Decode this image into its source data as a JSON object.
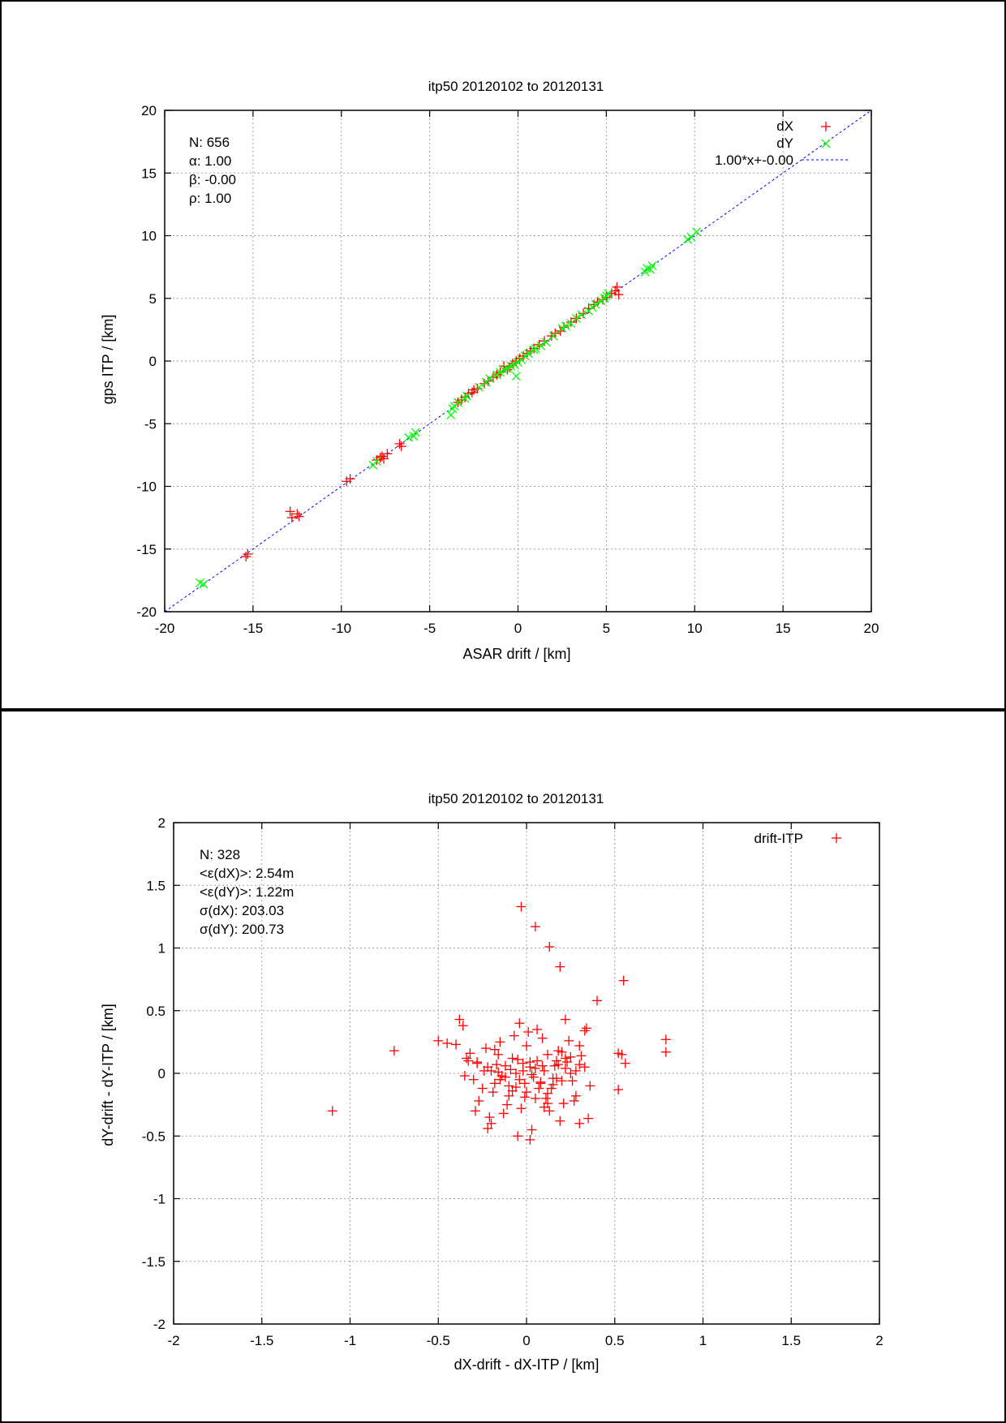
{
  "chart_data": [
    {
      "type": "scatter",
      "title": "itp50 20120102 to 20120131",
      "xlabel": "ASAR drift / [km]",
      "ylabel": "gps ITP / [km]",
      "xlim": [
        -20,
        20
      ],
      "ylim": [
        -20,
        20
      ],
      "xticks": [
        -20,
        -15,
        -10,
        -5,
        0,
        5,
        10,
        15,
        20
      ],
      "yticks": [
        -20,
        -15,
        -10,
        -5,
        0,
        5,
        10,
        15,
        20
      ],
      "grid": true,
      "legend_position": "top-right",
      "stats": [
        "N: 656",
        "α: 1.00",
        "β: -0.00",
        "ρ: 1.00"
      ],
      "series": [
        {
          "name": "dX",
          "marker": "plus",
          "color": "#ff0000",
          "x": [
            -15.4,
            -15.3,
            -12.9,
            -12.8,
            -12.5,
            -12.4,
            -9.7,
            -9.5,
            -8.0,
            -7.8,
            -7.7,
            -7.6,
            -7.4,
            -6.7,
            -6.6,
            -3.4,
            -3.2,
            -3.0,
            -2.8,
            -2.6,
            -2.5,
            -2.3,
            -1.9,
            -1.7,
            -1.4,
            -1.2,
            -1.0,
            -0.8,
            -0.6,
            -0.5,
            -0.3,
            -0.1,
            0.1,
            0.3,
            0.5,
            0.7,
            0.9,
            1.2,
            1.5,
            1.9,
            2.1,
            2.4,
            2.6,
            3.0,
            3.3,
            3.7,
            4.0,
            4.3,
            4.5,
            4.8,
            5.0,
            5.3,
            5.5,
            5.6,
            5.7
          ],
          "y": [
            -15.6,
            -15.4,
            -12.0,
            -12.5,
            -12.2,
            -12.4,
            -9.6,
            -9.4,
            -7.9,
            -7.7,
            -7.6,
            -7.8,
            -7.4,
            -6.6,
            -6.8,
            -3.3,
            -3.1,
            -2.9,
            -2.6,
            -2.5,
            -2.3,
            -2.2,
            -1.8,
            -1.6,
            -1.3,
            -1.1,
            -0.9,
            -0.4,
            -0.7,
            -0.5,
            -0.2,
            0.0,
            0.2,
            0.4,
            0.6,
            0.8,
            1.0,
            1.3,
            1.6,
            2.0,
            2.2,
            2.4,
            2.7,
            3.1,
            3.4,
            3.8,
            4.2,
            4.5,
            4.7,
            4.9,
            5.1,
            5.4,
            5.6,
            5.9,
            5.3
          ]
        },
        {
          "name": "dY",
          "marker": "cross",
          "color": "#00ff00",
          "x": [
            -18.0,
            -17.8,
            -8.2,
            -8.0,
            -6.2,
            -5.9,
            -5.8,
            -3.8,
            -3.7,
            -3.6,
            -3.4,
            -3.0,
            -2.9,
            -2.2,
            -1.8,
            -1.6,
            -1.2,
            -1.0,
            -0.8,
            -0.6,
            -0.4,
            -0.2,
            -0.1,
            0.0,
            0.2,
            0.4,
            0.6,
            0.9,
            1.0,
            1.3,
            1.6,
            2.0,
            2.5,
            2.7,
            3.0,
            3.3,
            3.6,
            4.0,
            4.2,
            4.4,
            4.7,
            4.9,
            5.0,
            5.1,
            7.2,
            7.3,
            7.5,
            7.6,
            9.6,
            9.8,
            10.1
          ],
          "y": [
            -17.7,
            -17.8,
            -8.3,
            -8.0,
            -6.1,
            -6.0,
            -5.7,
            -4.3,
            -3.8,
            -3.6,
            -3.3,
            -3.0,
            -2.8,
            -2.1,
            -1.7,
            -1.4,
            -1.1,
            -0.9,
            -0.7,
            -0.6,
            -0.4,
            -0.3,
            -1.2,
            -0.1,
            0.1,
            0.4,
            0.6,
            0.9,
            1.0,
            1.2,
            1.5,
            2.0,
            2.6,
            2.8,
            3.0,
            3.4,
            3.7,
            4.0,
            4.3,
            4.5,
            4.8,
            5.0,
            5.2,
            5.4,
            7.1,
            7.4,
            7.3,
            7.6,
            9.7,
            9.9,
            10.3
          ]
        },
        {
          "name": "1.00*x+-0.00",
          "marker": "line",
          "color": "#0000ff",
          "slope": 1.0,
          "intercept": 0.0
        }
      ]
    },
    {
      "type": "scatter",
      "title": "itp50 20120102 to 20120131",
      "xlabel": "dX-drift - dX-ITP / [km]",
      "ylabel": "dY-drift - dY-ITP / [km]",
      "xlim": [
        -2,
        2
      ],
      "ylim": [
        -2,
        2
      ],
      "xticks": [
        -2,
        -1.5,
        -1,
        -0.5,
        0,
        0.5,
        1,
        1.5,
        2
      ],
      "yticks": [
        -2,
        -1.5,
        -1,
        -0.5,
        0,
        0.5,
        1,
        1.5,
        2
      ],
      "grid": true,
      "legend_position": "top-right",
      "stats": [
        "N: 328",
        "<ε(dX)>:  2.54m",
        "<ε(dY)>: 1.22m",
        "σ(dX):  203.03",
        "σ(dY):  200.73"
      ],
      "series": [
        {
          "name": "drift-ITP",
          "marker": "plus",
          "color": "#ff0000",
          "x": [
            -0.03,
            0.05,
            0.13,
            0.19,
            0.55,
            0.4,
            -1.1,
            -0.75,
            0.79,
            0.79,
            0.52,
            0.54,
            0.56,
            0.52,
            0.33,
            0.34,
            0.22,
            0.24,
            0.28,
            0.3,
            -0.5,
            -0.45,
            -0.4,
            -0.38,
            -0.36,
            -0.34,
            -0.33,
            -0.3,
            -0.28,
            -0.25,
            -0.22,
            -0.2,
            -0.18,
            -0.16,
            -0.14,
            -0.12,
            -0.1,
            -0.08,
            -0.06,
            -0.04,
            -0.02,
            0.0,
            0.02,
            0.04,
            0.06,
            0.08,
            0.1,
            0.12,
            0.14,
            0.16,
            0.18,
            0.2,
            0.22,
            0.25,
            0.28,
            0.3,
            0.33,
            0.36,
            -0.35,
            -0.32,
            -0.27,
            -0.23,
            -0.19,
            -0.15,
            -0.11,
            -0.07,
            -0.03,
            0.01,
            0.05,
            0.09,
            0.13,
            0.17,
            0.21,
            0.26,
            0.31,
            -0.29,
            -0.21,
            -0.13,
            -0.05,
            0.03,
            0.11,
            0.19,
            0.27,
            -0.24,
            -0.17,
            -0.09,
            -0.01,
            0.07,
            0.15,
            0.23,
            -0.2,
            -0.1,
            0.0,
            0.1,
            0.2,
            -0.15,
            -0.05,
            0.05,
            0.15,
            0.25,
            -0.18,
            -0.08,
            0.02,
            0.12,
            0.22,
            -0.12,
            -0.02,
            0.08,
            0.18,
            0.02,
            -0.04,
            0.06,
            0.3,
            -0.22,
            -0.28,
            0.35,
            0.12,
            -0.06,
            0.03,
            0.09,
            -0.01,
            0.17,
            -0.16
          ],
          "y": [
            1.33,
            1.17,
            1.01,
            0.85,
            0.74,
            0.58,
            -0.3,
            0.18,
            0.27,
            0.17,
            0.16,
            0.15,
            0.08,
            -0.13,
            0.34,
            0.36,
            0.43,
            0.26,
            0.02,
            -0.4,
            0.26,
            0.24,
            0.23,
            0.43,
            0.38,
            0.12,
            0.1,
            -0.05,
            0.08,
            -0.12,
            0.05,
            0.02,
            -0.08,
            0.15,
            -0.02,
            0.06,
            -0.1,
            0.12,
            0.0,
            -0.05,
            0.08,
            -0.15,
            0.05,
            -0.03,
            0.1,
            -0.08,
            0.02,
            0.15,
            -0.12,
            0.06,
            0.18,
            -0.06,
            0.12,
            0.0,
            -0.18,
            0.22,
            0.05,
            -0.1,
            -0.02,
            0.16,
            -0.22,
            0.2,
            -0.15,
            0.25,
            -0.25,
            0.3,
            -0.28,
            0.33,
            -0.2,
            0.28,
            -0.3,
            0.1,
            -0.24,
            -0.06,
            0.14,
            -0.3,
            -0.35,
            -0.32,
            -0.5,
            -0.45,
            -0.2,
            -0.38,
            -0.22,
            0.02,
            0.07,
            0.03,
            -0.08,
            -0.12,
            -0.04,
            0.09,
            -0.4,
            -0.18,
            0.22,
            -0.27,
            0.17,
            -0.05,
            0.11,
            0.04,
            -0.09,
            0.13,
            0.19,
            -0.14,
            0.09,
            -0.16,
            0.04,
            -0.03,
            0.02,
            -0.07,
            0.07,
            -0.53,
            0.4,
            0.35,
            0.07,
            -0.44,
            0.09,
            -0.36,
            -0.24,
            -0.11,
            -0.01,
            0.06,
            -0.19,
            -0.04,
            0.01
          ]
        }
      ]
    }
  ]
}
